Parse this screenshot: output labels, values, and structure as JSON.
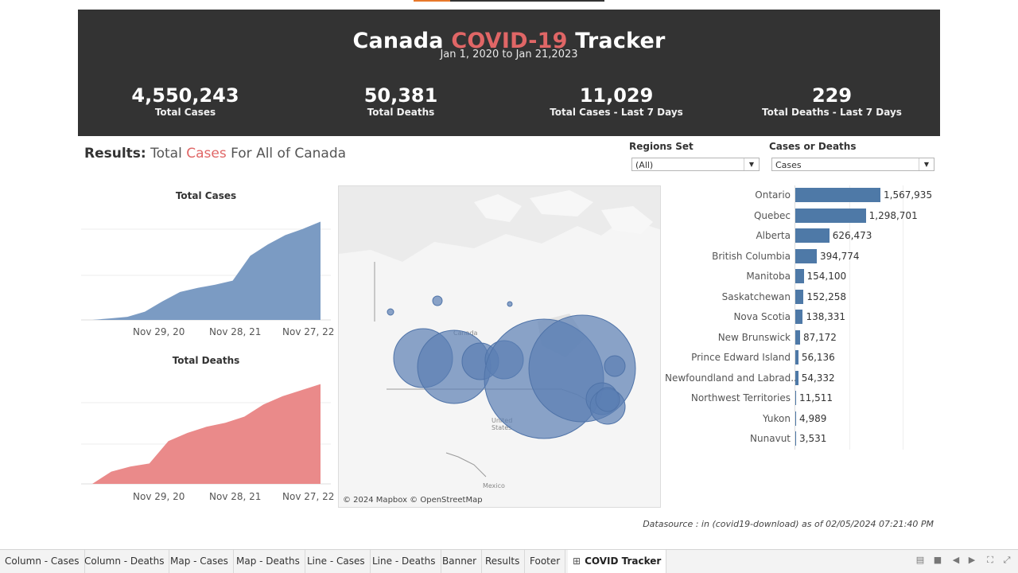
{
  "banner": {
    "title_part1": "Canada",
    "title_part2": "COVID-19",
    "title_part3": "Tracker",
    "date_range": "Jan 1, 2020 to Jan 21,2023",
    "kpis": [
      {
        "value": "4,550,243",
        "label": "Total Cases"
      },
      {
        "value": "50,381",
        "label": "Total Deaths"
      },
      {
        "value": "11,029",
        "label": "Total Cases - Last 7 Days"
      },
      {
        "value": "229",
        "label": "Total Deaths - Last 7 Days"
      }
    ]
  },
  "results": {
    "prefix": "Results:",
    "part1": "Total",
    "highlight": "Cases",
    "part2": "For All of Canada"
  },
  "filters": {
    "regions_label": "Regions Set",
    "regions_value": "(All)",
    "measure_label": "Cases or Deaths",
    "measure_value": "Cases"
  },
  "charts": {
    "cases_title": "Total Cases",
    "deaths_title": "Total Deaths",
    "x_ticks": [
      "Nov 29, 20",
      "Nov 28, 21",
      "Nov 27, 22"
    ],
    "cases_color": "#7b9bc3",
    "deaths_color": "#ea8a8a"
  },
  "chart_data": [
    {
      "type": "area",
      "title": "Total Cases",
      "x_ticks": [
        "Nov 29, 20",
        "Nov 28, 21",
        "Nov 27, 22"
      ],
      "shape": "cumulative",
      "color": "#7b9bc3",
      "x": [
        "Feb 2020",
        "May 2020",
        "Aug 2020",
        "Nov 2020",
        "Feb 2021",
        "May 2021",
        "Aug 2021",
        "Nov 2021",
        "Dec 2021",
        "Jan 2022",
        "Mar 2022",
        "Jun 2022",
        "Sep 2022",
        "Jan 2023"
      ],
      "values": [
        0.0,
        0.015,
        0.03,
        0.08,
        0.18,
        0.27,
        0.31,
        0.34,
        0.38,
        0.62,
        0.73,
        0.82,
        0.88,
        0.95
      ]
    },
    {
      "type": "area",
      "title": "Total Deaths",
      "x_ticks": [
        "Nov 29, 20",
        "Nov 28, 21",
        "Nov 27, 22"
      ],
      "shape": "cumulative",
      "color": "#ea8a8a",
      "x": [
        "Feb 2020",
        "Apr 2020",
        "Jun 2020",
        "Sep 2020",
        "Dec 2020",
        "Mar 2021",
        "Jun 2021",
        "Sep 2021",
        "Dec 2021",
        "Mar 2022",
        "Jun 2022",
        "Sep 2022",
        "Jan 2023"
      ],
      "values": [
        0.0,
        0.12,
        0.17,
        0.2,
        0.42,
        0.5,
        0.56,
        0.6,
        0.66,
        0.78,
        0.86,
        0.92,
        0.98
      ]
    },
    {
      "type": "bar",
      "orientation": "horizontal",
      "color": "#4e79a7",
      "categories": [
        "Ontario",
        "Quebec",
        "Alberta",
        "British Columbia",
        "Manitoba",
        "Saskatchewan",
        "Nova Scotia",
        "New Brunswick",
        "Prince Edward Island",
        "Newfoundland and Labrad..",
        "Northwest Territories",
        "Yukon",
        "Nunavut"
      ],
      "values": [
        1567935,
        1298701,
        626473,
        394774,
        154100,
        152258,
        138331,
        87172,
        56136,
        54332,
        11511,
        4989,
        3531
      ],
      "labels": [
        "1,567,935",
        "1,298,701",
        "626,473",
        "394,774",
        "154,100",
        "152,258",
        "138,331",
        "87,172",
        "56,136",
        "54,332",
        "11,511",
        "4,989",
        "3,531"
      ]
    }
  ],
  "map": {
    "attribution": "© 2024 Mapbox © OpenStreetMap",
    "labels": [
      "Canada",
      "United",
      "States",
      "Mexico"
    ],
    "bubble_color": "#5b7fb4"
  },
  "footer": {
    "datasource": "Datasource : in (covid19-download)  as of 02/05/2024 07:21:40 PM"
  },
  "tabs": [
    {
      "label": "Column - Cases"
    },
    {
      "label": "Column - Deaths"
    },
    {
      "label": "Map - Cases"
    },
    {
      "label": "Map - Deaths"
    },
    {
      "label": "Line - Cases"
    },
    {
      "label": "Line - Deaths"
    },
    {
      "label": "Banner"
    },
    {
      "label": "Results"
    },
    {
      "label": "Footer"
    },
    {
      "label": "COVID Tracker",
      "active": true
    }
  ]
}
